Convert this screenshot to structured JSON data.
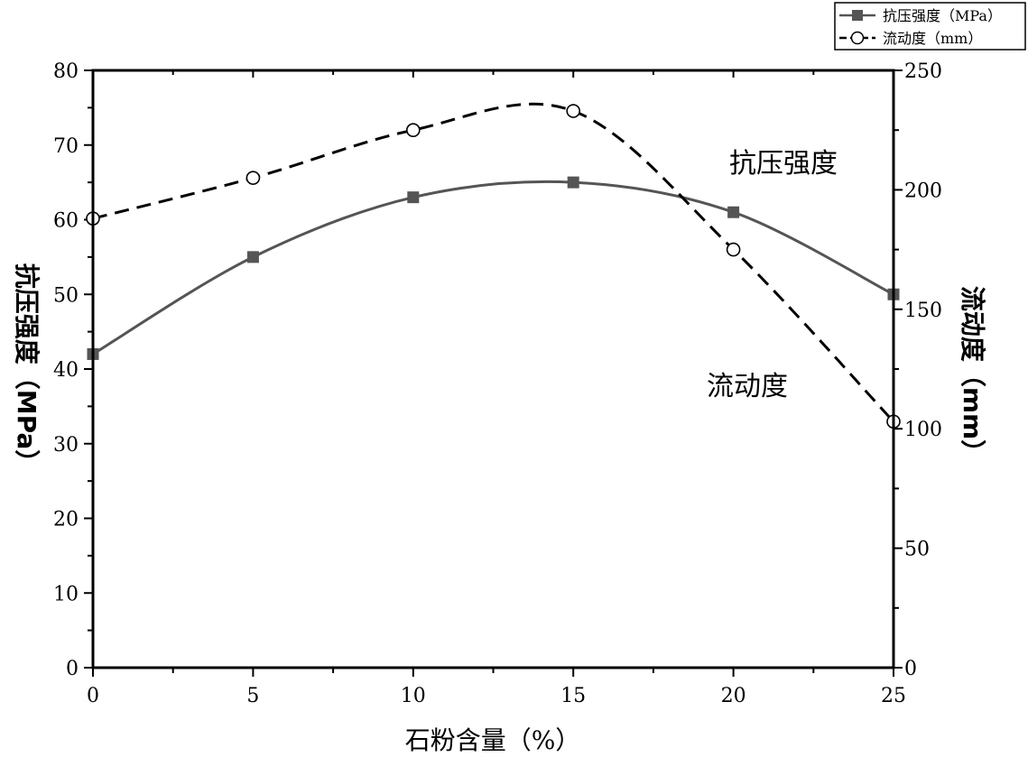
{
  "chart_data": {
    "type": "line",
    "xlabel": "石粉含量（%）",
    "ylabel_left": "抗压强度（MPa）",
    "ylabel_right": "流动度（mm）",
    "x": [
      0,
      5,
      10,
      15,
      20,
      25
    ],
    "xlim": [
      0,
      25
    ],
    "ylim_left": [
      0,
      80
    ],
    "ylim_right": [
      0,
      250
    ],
    "x_ticks": [
      0,
      5,
      10,
      15,
      20,
      25
    ],
    "y_left_ticks": [
      0,
      10,
      20,
      30,
      40,
      50,
      60,
      70,
      80
    ],
    "y_right_ticks": [
      0,
      50,
      100,
      150,
      200,
      250
    ],
    "grid": false,
    "legend_position": "top-right",
    "series": [
      {
        "name": "抗压强度（MPa）",
        "axis": "left",
        "values": [
          42,
          55,
          63,
          65,
          61,
          50
        ],
        "marker": "filled-square",
        "line_style": "solid",
        "color": "#555555"
      },
      {
        "name": "流动度（mm）",
        "axis": "right",
        "values": [
          188,
          205,
          225,
          233,
          175,
          103
        ],
        "marker": "open-circle",
        "line_style": "dashed",
        "color": "#000000"
      }
    ],
    "annotations": [
      {
        "text": "抗压强度"
      },
      {
        "text": "流动度"
      }
    ]
  }
}
